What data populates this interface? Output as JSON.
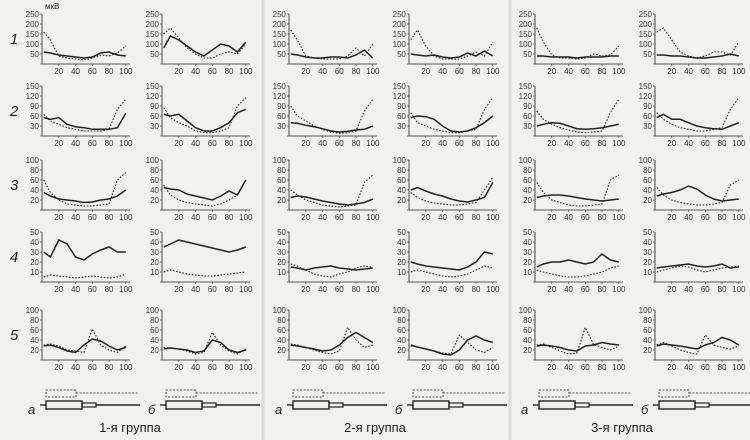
{
  "groups": [
    "1-я группа",
    "2-я группа",
    "3-я группа"
  ],
  "columns": [
    "а",
    "б",
    "а",
    "б",
    "а",
    "б"
  ],
  "rows": [
    "1",
    "2",
    "3",
    "4",
    "5"
  ],
  "unit": "мкВ",
  "colors": {
    "ink": "#222222",
    "background": "#f1f1ee"
  },
  "chart_data": {
    "type": "line",
    "x": [
      2,
      10,
      20,
      30,
      40,
      50,
      60,
      70,
      80,
      90,
      100
    ],
    "xticks": [
      20,
      40,
      60,
      80,
      100
    ],
    "row_axes": [
      {
        "ylim": [
          0,
          250
        ],
        "yticks": [
          0,
          50,
          100,
          150,
          200,
          250
        ]
      },
      {
        "ylim": [
          0,
          150
        ],
        "yticks": [
          0,
          30,
          60,
          90,
          120,
          150
        ]
      },
      {
        "ylim": [
          0,
          100
        ],
        "yticks": [
          0,
          20,
          40,
          60,
          80,
          100
        ]
      },
      {
        "ylim": [
          0,
          50
        ],
        "yticks": [
          0,
          10,
          20,
          30,
          40,
          50
        ]
      },
      {
        "ylim": [
          0,
          100
        ],
        "yticks": [
          0,
          20,
          40,
          60,
          80,
          100
        ]
      }
    ],
    "series_styles": [
      {
        "key": "solid",
        "style": "solid"
      },
      {
        "key": "dotted",
        "style": "dotted"
      }
    ],
    "panels": [
      [
        {
          "solid": [
            60,
            55,
            45,
            40,
            35,
            30,
            35,
            55,
            60,
            45,
            40
          ],
          "dotted": [
            160,
            120,
            40,
            30,
            25,
            20,
            30,
            45,
            40,
            55,
            90
          ]
        },
        {
          "solid": [
            80,
            140,
            120,
            90,
            60,
            40,
            70,
            100,
            90,
            60,
            110
          ],
          "dotted": [
            150,
            180,
            130,
            80,
            50,
            30,
            30,
            50,
            60,
            50,
            100
          ]
        },
        {
          "solid": [
            50,
            45,
            35,
            30,
            30,
            35,
            35,
            30,
            45,
            70,
            30
          ],
          "dotted": [
            170,
            120,
            40,
            30,
            25,
            25,
            25,
            40,
            80,
            40,
            100
          ]
        },
        {
          "solid": [
            50,
            45,
            40,
            45,
            35,
            30,
            35,
            55,
            40,
            65,
            40
          ],
          "dotted": [
            120,
            170,
            90,
            40,
            25,
            25,
            25,
            40,
            60,
            40,
            110
          ]
        },
        {
          "solid": [
            40,
            40,
            35,
            35,
            35,
            30,
            35,
            35,
            35,
            40,
            40
          ],
          "dotted": [
            180,
            110,
            45,
            30,
            30,
            25,
            30,
            50,
            40,
            45,
            90
          ]
        },
        {
          "solid": [
            45,
            45,
            40,
            40,
            35,
            30,
            30,
            35,
            40,
            50,
            40
          ],
          "dotted": [
            160,
            180,
            120,
            60,
            40,
            30,
            40,
            60,
            60,
            45,
            110
          ]
        }
      ],
      [
        {
          "solid": [
            55,
            50,
            55,
            35,
            28,
            25,
            20,
            20,
            20,
            25,
            68
          ],
          "dotted": [
            65,
            45,
            35,
            25,
            20,
            15,
            15,
            15,
            20,
            80,
            110
          ]
        },
        {
          "solid": [
            65,
            60,
            65,
            45,
            25,
            15,
            15,
            25,
            40,
            70,
            80
          ],
          "dotted": [
            85,
            55,
            40,
            30,
            15,
            10,
            10,
            15,
            25,
            90,
            115
          ]
        },
        {
          "solid": [
            40,
            38,
            32,
            28,
            22,
            15,
            12,
            14,
            18,
            20,
            30
          ],
          "dotted": [
            90,
            60,
            45,
            30,
            20,
            12,
            8,
            10,
            15,
            75,
            110
          ]
        },
        {
          "solid": [
            55,
            60,
            58,
            50,
            30,
            15,
            12,
            15,
            25,
            40,
            60
          ],
          "dotted": [
            70,
            40,
            30,
            20,
            15,
            10,
            10,
            15,
            20,
            80,
            115
          ]
        },
        {
          "solid": [
            30,
            35,
            40,
            38,
            30,
            22,
            20,
            22,
            25,
            30,
            35
          ],
          "dotted": [
            75,
            50,
            35,
            25,
            18,
            12,
            10,
            12,
            15,
            70,
            110
          ]
        },
        {
          "solid": [
            55,
            65,
            50,
            50,
            40,
            30,
            25,
            22,
            20,
            30,
            40
          ],
          "dotted": [
            70,
            50,
            35,
            25,
            20,
            15,
            15,
            20,
            25,
            80,
            115
          ]
        }
      ],
      [
        {
          "solid": [
            35,
            28,
            22,
            20,
            18,
            15,
            16,
            20,
            22,
            28,
            40
          ],
          "dotted": [
            60,
            35,
            20,
            12,
            10,
            8,
            8,
            10,
            12,
            60,
            75
          ]
        },
        {
          "solid": [
            45,
            42,
            40,
            32,
            28,
            24,
            20,
            28,
            38,
            30,
            60
          ],
          "dotted": [
            50,
            30,
            20,
            15,
            12,
            10,
            8,
            12,
            20,
            30,
            60
          ]
        },
        {
          "solid": [
            25,
            28,
            26,
            22,
            18,
            15,
            12,
            10,
            12,
            15,
            22
          ],
          "dotted": [
            40,
            30,
            20,
            15,
            10,
            8,
            6,
            8,
            10,
            55,
            70
          ]
        },
        {
          "solid": [
            40,
            45,
            38,
            32,
            28,
            22,
            18,
            16,
            20,
            25,
            55
          ],
          "dotted": [
            35,
            25,
            18,
            14,
            12,
            10,
            10,
            12,
            15,
            40,
            65
          ]
        },
        {
          "solid": [
            25,
            28,
            30,
            30,
            28,
            25,
            22,
            20,
            18,
            20,
            22
          ],
          "dotted": [
            55,
            35,
            20,
            15,
            10,
            8,
            8,
            10,
            12,
            60,
            70
          ]
        },
        {
          "solid": [
            28,
            32,
            35,
            40,
            48,
            42,
            30,
            22,
            18,
            20,
            22
          ],
          "dotted": [
            45,
            30,
            20,
            15,
            12,
            10,
            10,
            12,
            15,
            50,
            60
          ]
        }
      ],
      [
        {
          "solid": [
            30,
            25,
            42,
            38,
            25,
            22,
            28,
            32,
            35,
            30,
            30
          ],
          "dotted": [
            5,
            7,
            6,
            5,
            4,
            5,
            6,
            5,
            4,
            5,
            8
          ]
        },
        {
          "solid": [
            35,
            38,
            42,
            40,
            38,
            36,
            34,
            32,
            30,
            32,
            35
          ],
          "dotted": [
            10,
            12,
            10,
            8,
            7,
            6,
            6,
            7,
            8,
            9,
            10
          ]
        },
        {
          "solid": [
            15,
            14,
            12,
            14,
            15,
            16,
            14,
            13,
            12,
            13,
            14
          ],
          "dotted": [
            18,
            16,
            12,
            8,
            6,
            5,
            8,
            10,
            14,
            16,
            15
          ]
        },
        {
          "solid": [
            20,
            18,
            16,
            15,
            14,
            13,
            12,
            15,
            20,
            30,
            28
          ],
          "dotted": [
            10,
            12,
            10,
            8,
            6,
            5,
            6,
            8,
            12,
            16,
            14
          ]
        },
        {
          "solid": [
            15,
            18,
            20,
            20,
            22,
            20,
            18,
            20,
            28,
            22,
            20
          ],
          "dotted": [
            12,
            10,
            8,
            6,
            5,
            5,
            6,
            8,
            10,
            14,
            16
          ]
        },
        {
          "solid": [
            14,
            15,
            16,
            17,
            18,
            16,
            15,
            16,
            18,
            14,
            15
          ],
          "dotted": [
            10,
            12,
            14,
            16,
            15,
            12,
            10,
            12,
            14,
            15,
            16
          ]
        }
      ],
      [
        {
          "solid": [
            28,
            30,
            25,
            18,
            15,
            30,
            42,
            38,
            28,
            20,
            25
          ],
          "dotted": [
            30,
            32,
            28,
            20,
            18,
            15,
            62,
            30,
            20,
            15,
            28
          ]
        },
        {
          "solid": [
            22,
            24,
            22,
            20,
            15,
            18,
            40,
            35,
            20,
            15,
            20
          ],
          "dotted": [
            25,
            24,
            22,
            18,
            12,
            15,
            55,
            30,
            18,
            12,
            22
          ]
        },
        {
          "solid": [
            30,
            28,
            25,
            22,
            18,
            20,
            30,
            45,
            55,
            45,
            35
          ],
          "dotted": [
            32,
            30,
            25,
            20,
            15,
            12,
            18,
            65,
            40,
            25,
            30
          ]
        },
        {
          "solid": [
            30,
            26,
            22,
            18,
            12,
            10,
            20,
            40,
            48,
            40,
            35
          ],
          "dotted": [
            28,
            26,
            22,
            18,
            14,
            12,
            50,
            35,
            20,
            15,
            25
          ]
        },
        {
          "solid": [
            28,
            30,
            28,
            25,
            20,
            18,
            28,
            30,
            35,
            32,
            30
          ],
          "dotted": [
            30,
            32,
            25,
            18,
            12,
            14,
            65,
            30,
            25,
            20,
            28
          ]
        },
        {
          "solid": [
            28,
            32,
            30,
            28,
            25,
            22,
            30,
            35,
            45,
            40,
            30
          ],
          "dotted": [
            30,
            35,
            28,
            20,
            15,
            12,
            50,
            30,
            25,
            22,
            28
          ]
        }
      ]
    ]
  }
}
